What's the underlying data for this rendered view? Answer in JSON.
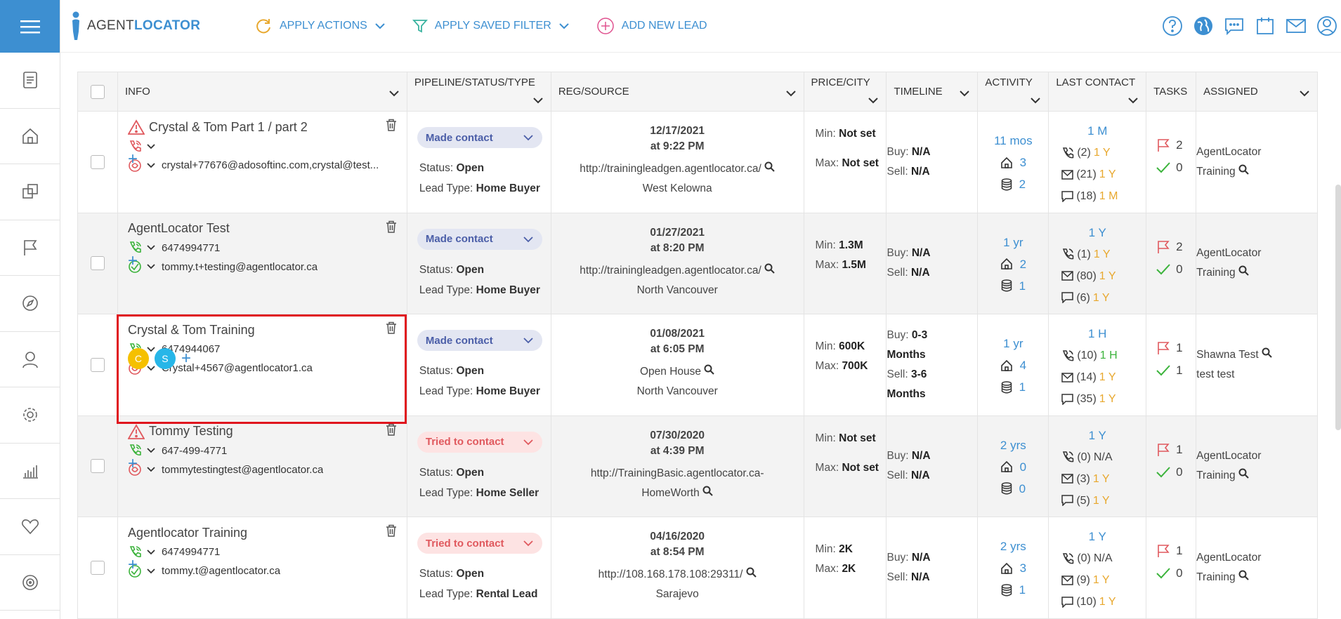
{
  "app": {
    "logo_prefix": "AGENT",
    "logo_suffix": "LOCATOR"
  },
  "toolbar": {
    "apply_actions": "APPLY ACTIONS",
    "apply_saved_filter": "APPLY SAVED FILTER",
    "add_new_lead": "ADD NEW LEAD"
  },
  "colors": {
    "accent": "#3d8fd1",
    "warning": "#e0595e",
    "gold": "#e8a82e",
    "green": "#3bb33b",
    "highlight": "#e0151e"
  },
  "columns": {
    "info": "INFO",
    "pipeline": "PIPELINE/STATUS/TYPE",
    "reg": "REG/SOURCE",
    "price": "PRICE/CITY",
    "timeline": "TIMELINE",
    "activity": "ACTIVITY",
    "last_contact": "LAST CONTACT",
    "tasks": "TASKS",
    "assigned": "ASSIGNED"
  },
  "labels": {
    "status": "Status:",
    "lead_type": "Lead Type:",
    "min": "Min:",
    "max": "Max:",
    "buy": "Buy:",
    "sell": "Sell:"
  },
  "rows": [
    {
      "name": "Crystal & Tom Part 1 / part 2",
      "phone": "",
      "email": "crystal+77676@adosoftinc.com,crystal@test...",
      "pipeline": "Made contact",
      "status": "Open",
      "lead_type": "Home Buyer",
      "date": "12/17/2021",
      "time": "at 9:22 PM",
      "source": "http://trainingleadgen.agentlocator.ca/",
      "city": "West Kelowna",
      "min": "Not set",
      "max": "Not set",
      "buy": "N/A",
      "sell": "N/A",
      "act_age": "11 mos",
      "act_homes": "3",
      "act_db": "2",
      "lc_top": "1 M",
      "lc_calls": "(2)",
      "lc_calls_age": "1 Y",
      "lc_mails": "(21)",
      "lc_mails_age": "1 Y",
      "lc_msgs": "(18)",
      "lc_msgs_age": "1 M",
      "tasks_open": "2",
      "tasks_done": "0",
      "assigned1": "AgentLocator",
      "assigned2": "Training"
    },
    {
      "name": "AgentLocator Test",
      "phone": "6474994771",
      "email": "tommy.t+testing@agentlocator.ca",
      "pipeline": "Made contact",
      "status": "Open",
      "lead_type": "Home Buyer",
      "date": "01/27/2021",
      "time": "at 8:20 PM",
      "source": "http://trainingleadgen.agentlocator.ca/",
      "city": "North Vancouver",
      "min": "1.3M",
      "max": "1.5M",
      "buy": "N/A",
      "sell": "N/A",
      "act_age": "1 yr",
      "act_homes": "2",
      "act_db": "1",
      "lc_top": "1 Y",
      "lc_calls": "(1)",
      "lc_calls_age": "1 Y",
      "lc_mails": "(80)",
      "lc_mails_age": "1 Y",
      "lc_msgs": "(6)",
      "lc_msgs_age": "1 Y",
      "tasks_open": "2",
      "tasks_done": "0",
      "assigned1": "AgentLocator",
      "assigned2": "Training"
    },
    {
      "name": "Crystal & Tom Training",
      "phone": "6474944067",
      "email": "Crystal+4567@agentlocator1.ca",
      "avatar1": "C",
      "avatar2": "S",
      "pipeline": "Made contact",
      "status": "Open",
      "lead_type": "Home Buyer",
      "date": "01/08/2021",
      "time": "at 6:05 PM",
      "source": "Open House",
      "city": "North Vancouver",
      "min": "600K",
      "max": "700K",
      "buy": "0-3",
      "buy2": "Months",
      "sell": "3-6",
      "sell2": "Months",
      "act_age": "1 yr",
      "act_homes": "4",
      "act_db": "1",
      "lc_top": "1 H",
      "lc_calls": "(10)",
      "lc_calls_age": "1 H",
      "lc_mails": "(14)",
      "lc_mails_age": "1 Y",
      "lc_msgs": "(35)",
      "lc_msgs_age": "1 Y",
      "tasks_open": "1",
      "tasks_done": "1",
      "assigned1": "Shawna Test",
      "assigned2": "test test"
    },
    {
      "name": "Tommy Testing",
      "phone": "647-499-4771",
      "email": "tommytestingtest@agentlocator.ca",
      "pipeline": "Tried to contact",
      "status": "Open",
      "lead_type": "Home Seller",
      "date": "07/30/2020",
      "time": "at 4:39 PM",
      "source": "http://TrainingBasic.agentlocator.ca-",
      "source2": "HomeWorth",
      "min": "Not set",
      "max": "Not set",
      "buy": "N/A",
      "sell": "N/A",
      "act_age": "2 yrs",
      "act_homes": "0",
      "act_db": "0",
      "lc_top": "1 Y",
      "lc_calls": "(0)",
      "lc_calls_age": "N/A",
      "lc_mails": "(3)",
      "lc_mails_age": "1 Y",
      "lc_msgs": "(5)",
      "lc_msgs_age": "1 Y",
      "tasks_open": "1",
      "tasks_done": "0",
      "assigned1": "AgentLocator",
      "assigned2": "Training"
    },
    {
      "name": "Agentlocator Training",
      "phone": "6474994771",
      "email": "tommy.t@agentlocator.ca",
      "pipeline": "Tried to contact",
      "status": "Open",
      "lead_type": "Rental Lead",
      "date": "04/16/2020",
      "time": "at 8:54 PM",
      "source": "http://108.168.178.108:29311/",
      "city": "Sarajevo",
      "min": "2K",
      "max": "2K",
      "buy": "N/A",
      "sell": "N/A",
      "act_age": "2 yrs",
      "act_homes": "3",
      "act_db": "1",
      "lc_top": "1 Y",
      "lc_calls": "(0)",
      "lc_calls_age": "N/A",
      "lc_mails": "(9)",
      "lc_mails_age": "1 Y",
      "lc_msgs": "(10)",
      "lc_msgs_age": "1 Y",
      "tasks_open": "1",
      "tasks_done": "0",
      "assigned1": "AgentLocator",
      "assigned2": "Training"
    }
  ]
}
